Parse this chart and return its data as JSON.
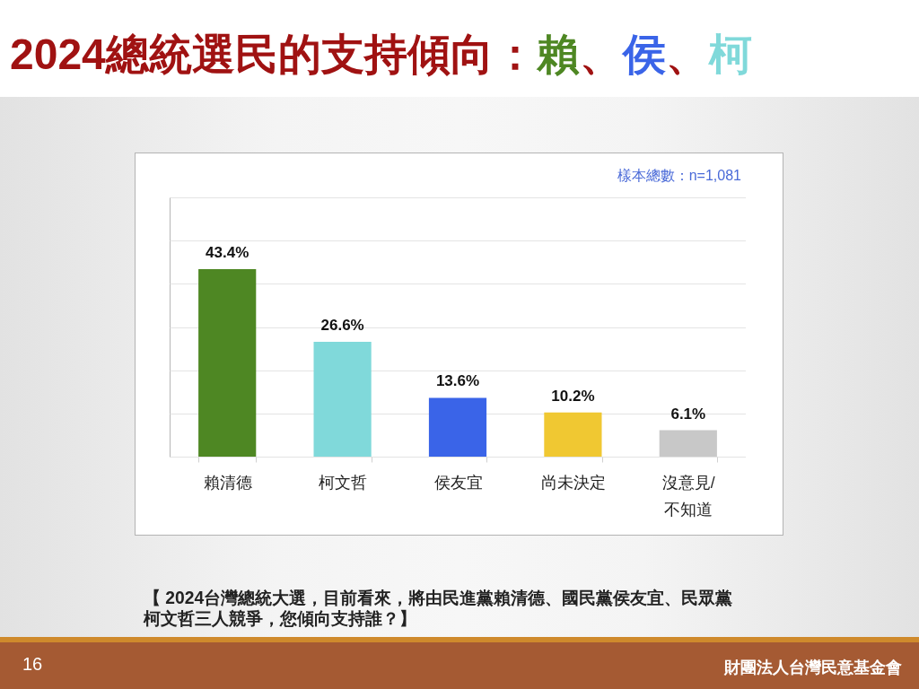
{
  "chart_data": {
    "type": "bar",
    "title": "2024總統選民的支持傾向：賴、侯、柯",
    "categories": [
      "賴清德",
      "柯文哲",
      "侯友宜",
      "尚未決定",
      "沒意見/不知道"
    ],
    "values": [
      43.4,
      26.6,
      13.6,
      10.2,
      6.1
    ],
    "colors": [
      "#4e8723",
      "#80d9da",
      "#3a64e8",
      "#f0c832",
      "#c8c8c8"
    ],
    "value_labels": [
      "43.4%",
      "26.6%",
      "13.6%",
      "10.2%",
      "6.1%"
    ],
    "ylim": [
      0,
      60
    ],
    "yticks": [
      {
        "value": 0,
        "label": null
      },
      {
        "value": 10,
        "label": null
      },
      {
        "value": 20,
        "label": null
      },
      {
        "value": 30,
        "label": null
      },
      {
        "value": 40,
        "label": null
      },
      {
        "value": 50,
        "label": null
      },
      {
        "value": 60,
        "label": null
      }
    ],
    "grid": "y",
    "tick_labels": "x",
    "annotations": [
      "樣本總數：n=1,081",
      "【 2024台灣總統大選，目前看來，將由民進黨賴清德、國民黨侯友宜、民眾黨柯文哲三人競爭，您傾向支持誰？】",
      "16",
      "財團法人台灣民意基金會"
    ]
  }
}
